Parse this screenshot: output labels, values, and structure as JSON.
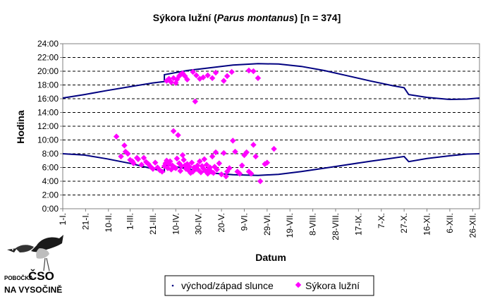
{
  "chart_data": {
    "type": "scatter",
    "title_prefix": "Sýkora lužní (",
    "title_species": "Parus montanus",
    "title_suffix": ") [n = 374]",
    "xlabel": "Datum",
    "ylabel": "Hodina",
    "ylim": [
      0,
      24
    ],
    "y_ticks": [
      "24:00",
      "22:00",
      "20:00",
      "18:00",
      "16:00",
      "14:00",
      "12:00",
      "10:00",
      "8:00",
      "6:00",
      "4:00",
      "2:00",
      "0:00"
    ],
    "y_tick_values": [
      24,
      22,
      20,
      18,
      16,
      14,
      12,
      10,
      8,
      6,
      4,
      2,
      0
    ],
    "x_range_days": [
      1,
      366
    ],
    "x_ticks": [
      "1-I.",
      "21-I.",
      "10-II.",
      "1-III.",
      "21-III.",
      "10-IV.",
      "30-IV.",
      "20-V.",
      "9-VI.",
      "29-VI.",
      "19-VII.",
      "8-VIII.",
      "28-VIII.",
      "17-IX.",
      "7-X.",
      "27-X.",
      "16-XI.",
      "6-XII.",
      "26-XII."
    ],
    "x_tick_days": [
      1,
      21,
      41,
      60,
      80,
      100,
      120,
      140,
      160,
      180,
      200,
      220,
      240,
      260,
      280,
      300,
      320,
      340,
      360
    ],
    "grid": "horizontal-dashed",
    "legend_position": "bottom-center",
    "series": [
      {
        "name": "východ/západ slunce",
        "kind": "line",
        "color": "#000080",
        "sunrise": [
          [
            1,
            8.0
          ],
          [
            20,
            7.8
          ],
          [
            40,
            7.25
          ],
          [
            60,
            6.6
          ],
          [
            80,
            5.8
          ],
          [
            90,
            5.4
          ],
          [
            90,
            6.4
          ],
          [
            110,
            5.8
          ],
          [
            130,
            5.2
          ],
          [
            150,
            4.95
          ],
          [
            172,
            4.85
          ],
          [
            190,
            5.0
          ],
          [
            210,
            5.4
          ],
          [
            230,
            5.9
          ],
          [
            250,
            6.4
          ],
          [
            270,
            6.9
          ],
          [
            290,
            7.35
          ],
          [
            300,
            7.6
          ],
          [
            304,
            6.85
          ],
          [
            320,
            7.3
          ],
          [
            340,
            7.7
          ],
          [
            355,
            7.95
          ],
          [
            366,
            8.0
          ]
        ],
        "sunset": [
          [
            1,
            16.1
          ],
          [
            20,
            16.6
          ],
          [
            40,
            17.2
          ],
          [
            60,
            17.75
          ],
          [
            80,
            18.3
          ],
          [
            90,
            18.5
          ],
          [
            90,
            19.5
          ],
          [
            110,
            20.1
          ],
          [
            130,
            20.5
          ],
          [
            150,
            20.9
          ],
          [
            172,
            21.1
          ],
          [
            190,
            21.05
          ],
          [
            210,
            20.7
          ],
          [
            230,
            20.1
          ],
          [
            250,
            19.35
          ],
          [
            270,
            18.6
          ],
          [
            290,
            17.9
          ],
          [
            300,
            17.6
          ],
          [
            304,
            16.6
          ],
          [
            320,
            16.2
          ],
          [
            340,
            15.9
          ],
          [
            355,
            15.95
          ],
          [
            366,
            16.1
          ]
        ]
      },
      {
        "name": "Sýkora lužní",
        "kind": "scatter",
        "color": "#ff00ff",
        "points": [
          [
            48,
            10.5
          ],
          [
            52,
            7.6
          ],
          [
            55,
            9.2
          ],
          [
            56,
            8.3
          ],
          [
            58,
            8.0
          ],
          [
            60,
            7.1
          ],
          [
            62,
            6.9
          ],
          [
            63,
            6.6
          ],
          [
            66,
            7.4
          ],
          [
            67,
            7.2
          ],
          [
            70,
            6.4
          ],
          [
            72,
            7.4
          ],
          [
            74,
            6.8
          ],
          [
            76,
            6.5
          ],
          [
            78,
            6.1
          ],
          [
            80,
            5.8
          ],
          [
            82,
            6.7
          ],
          [
            84,
            6.0
          ],
          [
            86,
            5.6
          ],
          [
            88,
            5.4
          ],
          [
            90,
            6.2
          ],
          [
            91,
            6.6
          ],
          [
            92,
            7.0
          ],
          [
            93,
            5.9
          ],
          [
            94,
            6.5
          ],
          [
            95,
            6.9
          ],
          [
            96,
            5.7
          ],
          [
            97,
            6.3
          ],
          [
            98,
            11.3
          ],
          [
            99,
            6.0
          ],
          [
            100,
            5.9
          ],
          [
            101,
            7.3
          ],
          [
            102,
            10.7
          ],
          [
            103,
            6.6
          ],
          [
            104,
            5.5
          ],
          [
            105,
            6.2
          ],
          [
            106,
            7.8
          ],
          [
            107,
            7.1
          ],
          [
            108,
            6.3
          ],
          [
            109,
            5.8
          ],
          [
            110,
            6.5
          ],
          [
            111,
            5.6
          ],
          [
            112,
            6.1
          ],
          [
            113,
            5.2
          ],
          [
            114,
            6.7
          ],
          [
            115,
            5.4
          ],
          [
            116,
            6.0
          ],
          [
            117,
            15.6
          ],
          [
            118,
            5.8
          ],
          [
            119,
            6.3
          ],
          [
            120,
            5.6
          ],
          [
            121,
            6.9
          ],
          [
            122,
            5.3
          ],
          [
            123,
            6.2
          ],
          [
            124,
            5.9
          ],
          [
            125,
            7.2
          ],
          [
            126,
            5.5
          ],
          [
            127,
            6.4
          ],
          [
            128,
            5.1
          ],
          [
            129,
            5.8
          ],
          [
            130,
            6.0
          ],
          [
            131,
            5.4
          ],
          [
            132,
            7.6
          ],
          [
            133,
            5.2
          ],
          [
            134,
            6.1
          ],
          [
            135,
            8.2
          ],
          [
            136,
            5.7
          ],
          [
            138,
            6.6
          ],
          [
            140,
            5.0
          ],
          [
            142,
            8.1
          ],
          [
            144,
            4.7
          ],
          [
            145,
            5.4
          ],
          [
            147,
            5.9
          ],
          [
            150,
            9.9
          ],
          [
            152,
            8.3
          ],
          [
            154,
            5.4
          ],
          [
            156,
            5.1
          ],
          [
            158,
            6.3
          ],
          [
            160,
            7.8
          ],
          [
            162,
            8.2
          ],
          [
            164,
            5.4
          ],
          [
            166,
            5.1
          ],
          [
            168,
            9.3
          ],
          [
            170,
            7.6
          ],
          [
            174,
            4.0
          ],
          [
            178,
            6.5
          ],
          [
            180,
            6.7
          ],
          [
            186,
            8.7
          ],
          [
            92,
            18.6
          ],
          [
            94,
            18.9
          ],
          [
            96,
            18.4
          ],
          [
            98,
            19.0
          ],
          [
            100,
            18.3
          ],
          [
            101,
            18.8
          ],
          [
            103,
            19.3
          ],
          [
            104,
            19.5
          ],
          [
            106,
            19.7
          ],
          [
            108,
            19.3
          ],
          [
            110,
            18.8
          ],
          [
            115,
            19.9
          ],
          [
            118,
            19.4
          ],
          [
            121,
            18.9
          ],
          [
            124,
            19.1
          ],
          [
            128,
            19.4
          ],
          [
            132,
            19.0
          ],
          [
            135,
            19.8
          ],
          [
            142,
            18.6
          ],
          [
            145,
            19.3
          ],
          [
            149,
            19.9
          ],
          [
            164,
            20.1
          ],
          [
            168,
            20.0
          ],
          [
            172,
            19.0
          ]
        ]
      }
    ]
  },
  "logo": {
    "line1": "POBOČKA",
    "line2": "ČSO",
    "line3": "NA VYSOČINĚ"
  }
}
